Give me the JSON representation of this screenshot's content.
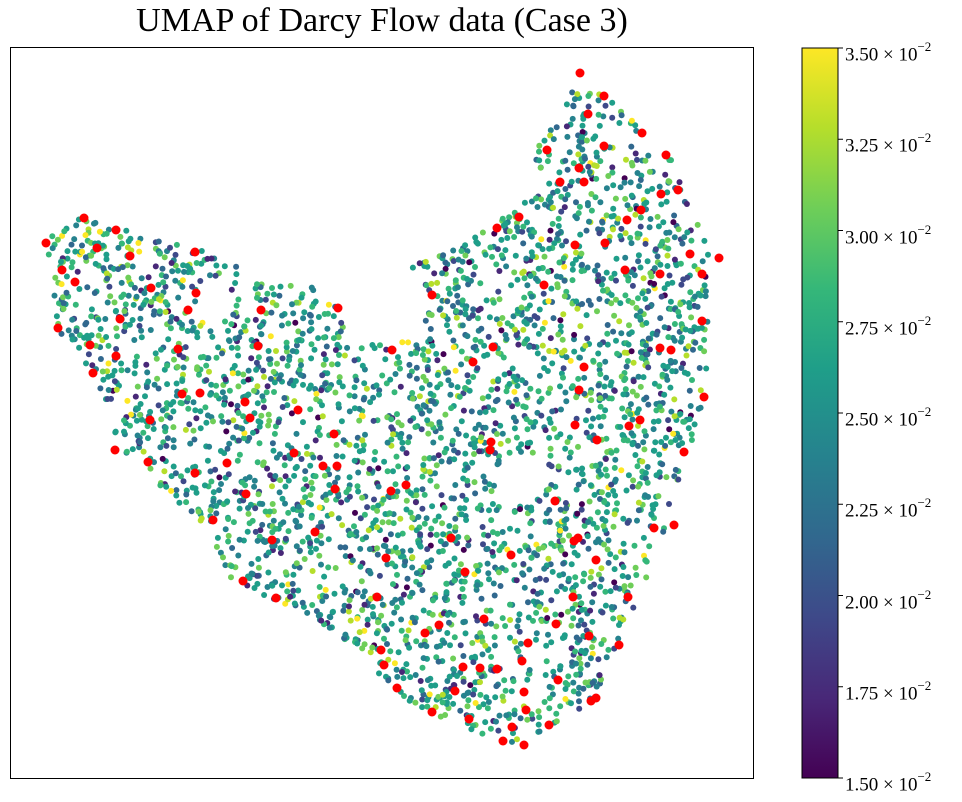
{
  "chart_data": {
    "type": "scatter",
    "title": "UMAP of Darcy Flow data (Case 3)",
    "xlabel": "",
    "ylabel": "",
    "x_ticks": [],
    "y_ticks": [],
    "grid": false,
    "colormap": "viridis",
    "colorbar": {
      "range": [
        0.015,
        0.035
      ],
      "ticks": [
        {
          "value": 0.015,
          "mantissa": "1.50",
          "exp": "−2"
        },
        {
          "value": 0.0175,
          "mantissa": "1.75",
          "exp": "−2"
        },
        {
          "value": 0.02,
          "mantissa": "2.00",
          "exp": "−2"
        },
        {
          "value": 0.0225,
          "mantissa": "2.25",
          "exp": "−2"
        },
        {
          "value": 0.025,
          "mantissa": "2.50",
          "exp": "−2"
        },
        {
          "value": 0.0275,
          "mantissa": "2.75",
          "exp": "−2"
        },
        {
          "value": 0.03,
          "mantissa": "3.00",
          "exp": "−2"
        },
        {
          "value": 0.0325,
          "mantissa": "3.25",
          "exp": "−2"
        },
        {
          "value": 0.035,
          "mantissa": "3.50",
          "exp": "−2"
        }
      ]
    },
    "colors": {
      "highlight": "#ff0000",
      "viridis": [
        "#440154",
        "#482878",
        "#3e4989",
        "#31688e",
        "#26828e",
        "#1f9e89",
        "#35b779",
        "#6ece58",
        "#b5de2b",
        "#fde725"
      ]
    },
    "highlighted_points": [
      [
        46,
        243
      ],
      [
        62,
        270
      ],
      [
        75,
        282
      ],
      [
        84,
        218
      ],
      [
        97,
        248
      ],
      [
        116,
        230
      ],
      [
        130,
        256
      ],
      [
        151,
        288
      ],
      [
        188,
        310
      ],
      [
        195,
        252
      ],
      [
        196,
        293
      ],
      [
        261,
        310
      ],
      [
        338,
        308
      ],
      [
        58,
        328
      ],
      [
        90,
        345
      ],
      [
        93,
        373
      ],
      [
        116,
        356
      ],
      [
        120,
        319
      ],
      [
        178,
        349
      ],
      [
        182,
        394
      ],
      [
        200,
        393
      ],
      [
        245,
        402
      ],
      [
        258,
        346
      ],
      [
        298,
        410
      ],
      [
        334,
        434
      ],
      [
        150,
        420
      ],
      [
        115,
        450
      ],
      [
        148,
        462
      ],
      [
        195,
        473
      ],
      [
        227,
        463
      ],
      [
        246,
        494
      ],
      [
        213,
        520
      ],
      [
        272,
        540
      ],
      [
        315,
        532
      ],
      [
        243,
        581
      ],
      [
        276,
        598
      ],
      [
        323,
        466
      ],
      [
        337,
        466
      ],
      [
        392,
        350
      ],
      [
        432,
        295
      ],
      [
        497,
        228
      ],
      [
        519,
        217
      ],
      [
        544,
        285
      ],
      [
        580,
        73
      ],
      [
        604,
        96
      ],
      [
        588,
        114
      ],
      [
        579,
        168
      ],
      [
        547,
        150
      ],
      [
        560,
        182
      ],
      [
        584,
        182
      ],
      [
        604,
        146
      ],
      [
        642,
        133
      ],
      [
        666,
        155
      ],
      [
        678,
        190
      ],
      [
        661,
        194
      ],
      [
        627,
        220
      ],
      [
        641,
        210
      ],
      [
        575,
        245
      ],
      [
        605,
        243
      ],
      [
        625,
        270
      ],
      [
        660,
        274
      ],
      [
        690,
        254
      ],
      [
        719,
        258
      ],
      [
        702,
        274
      ],
      [
        702,
        321
      ],
      [
        660,
        348
      ],
      [
        671,
        350
      ],
      [
        704,
        397
      ],
      [
        684,
        452
      ],
      [
        654,
        528
      ],
      [
        674,
        525
      ],
      [
        640,
        420
      ],
      [
        629,
        426
      ],
      [
        597,
        440
      ],
      [
        575,
        425
      ],
      [
        579,
        390
      ],
      [
        584,
        367
      ],
      [
        493,
        347
      ],
      [
        473,
        362
      ],
      [
        491,
        442
      ],
      [
        490,
        450
      ],
      [
        406,
        485
      ],
      [
        391,
        491
      ],
      [
        451,
        538
      ],
      [
        386,
        558
      ],
      [
        465,
        572
      ],
      [
        511,
        555
      ],
      [
        555,
        501
      ],
      [
        578,
        538
      ],
      [
        574,
        541
      ],
      [
        596,
        560
      ],
      [
        573,
        597
      ],
      [
        628,
        597
      ],
      [
        619,
        645
      ],
      [
        589,
        636
      ],
      [
        556,
        624
      ],
      [
        528,
        643
      ],
      [
        484,
        619
      ],
      [
        425,
        633
      ],
      [
        377,
        597
      ],
      [
        439,
        625
      ],
      [
        381,
        650
      ],
      [
        384,
        665
      ],
      [
        463,
        667
      ],
      [
        480,
        668
      ],
      [
        522,
        661
      ],
      [
        497,
        669
      ],
      [
        558,
        680
      ],
      [
        596,
        698
      ],
      [
        591,
        701
      ],
      [
        524,
        692
      ],
      [
        455,
        691
      ],
      [
        397,
        688
      ],
      [
        432,
        712
      ],
      [
        469,
        719
      ],
      [
        526,
        710
      ],
      [
        549,
        725
      ],
      [
        512,
        727
      ],
      [
        503,
        741
      ],
      [
        524,
        745
      ],
      [
        294,
        453
      ],
      [
        335,
        489
      ],
      [
        250,
        418
      ]
    ]
  }
}
